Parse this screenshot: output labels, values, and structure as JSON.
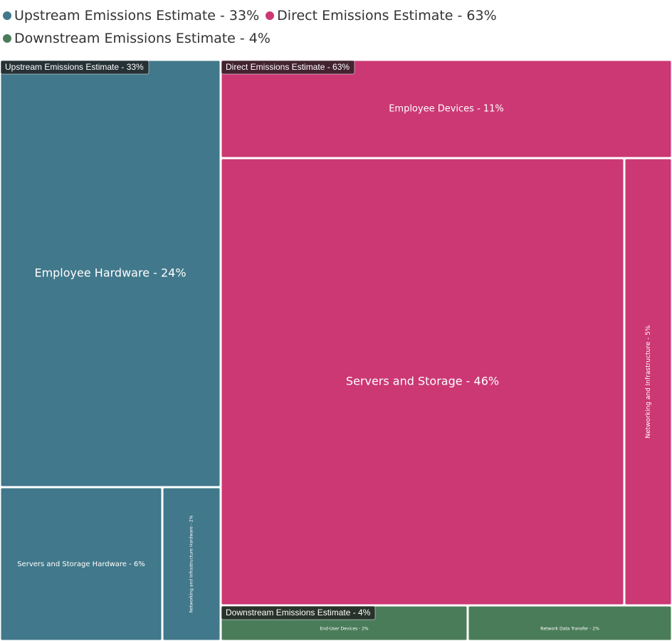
{
  "legend": {
    "items": [
      {
        "label": "Upstream Emissions Estimate - 33%",
        "color": "#41788b"
      },
      {
        "label": "Direct Emissions Estimate - 63%",
        "color": "#cb3874"
      },
      {
        "label": "Downstream Emissions Estimate - 4%",
        "color": "#4a7c59"
      }
    ]
  },
  "chart_data": {
    "type": "treemap",
    "title": "",
    "groups": [
      {
        "name": "Upstream Emissions Estimate - 33%",
        "value": 33,
        "color": "#41788b",
        "children": [
          {
            "name": "Employee Hardware - 24%",
            "value": 24
          },
          {
            "name": "Servers and Storage Hardware - 6%",
            "value": 6
          },
          {
            "name": "Networking and Infrastructure Hardware - 2%",
            "value": 2
          }
        ]
      },
      {
        "name": "Direct Emissions Estimate - 63%",
        "value": 63,
        "color": "#cb3874",
        "children": [
          {
            "name": "Employee Devices - 11%",
            "value": 11
          },
          {
            "name": "Servers and Storage - 46%",
            "value": 46
          },
          {
            "name": "Networking and Infrastructure - 5%",
            "value": 5
          }
        ]
      },
      {
        "name": "Downstream Emissions Estimate - 4%",
        "value": 4,
        "color": "#4a7c59",
        "children": [
          {
            "name": "End-User Devices - 2%",
            "value": 2
          },
          {
            "name": "Network Data Transfer - 2%",
            "value": 2
          }
        ]
      }
    ]
  }
}
